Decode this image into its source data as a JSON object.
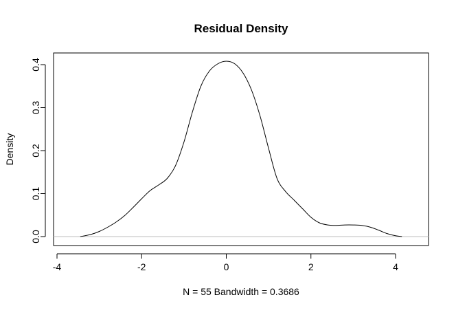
{
  "chart_data": {
    "type": "line",
    "title": "Residual Density",
    "xlabel": "N = 55   Bandwidth = 0.3686",
    "ylabel": "Density",
    "xlim": [
      -4,
      4
    ],
    "ylim": [
      0,
      0.4
    ],
    "x_ticks": [
      "-4",
      "-2",
      "0",
      "2",
      "4"
    ],
    "y_ticks": [
      "0.0",
      "0.1",
      "0.2",
      "0.3",
      "0.4"
    ],
    "grid": false,
    "legend": "none",
    "colors": {
      "line": "#000000",
      "baseline": "#bebebe",
      "frame": "#000000"
    },
    "series": [
      {
        "x": [
          -3.45,
          -3.2,
          -3.0,
          -2.8,
          -2.6,
          -2.4,
          -2.2,
          -2.0,
          -1.8,
          -1.6,
          -1.4,
          -1.2,
          -1.0,
          -0.8,
          -0.6,
          -0.4,
          -0.2,
          0.0,
          0.2,
          0.4,
          0.6,
          0.8,
          1.0,
          1.2,
          1.4,
          1.6,
          1.8,
          2.0,
          2.2,
          2.4,
          2.6,
          2.8,
          3.0,
          3.2,
          3.4,
          3.6,
          3.8,
          4.0,
          4.15
        ],
        "y": [
          0.0,
          0.005,
          0.012,
          0.022,
          0.034,
          0.049,
          0.068,
          0.088,
          0.107,
          0.12,
          0.135,
          0.165,
          0.22,
          0.29,
          0.35,
          0.385,
          0.402,
          0.408,
          0.402,
          0.38,
          0.34,
          0.28,
          0.205,
          0.135,
          0.105,
          0.085,
          0.065,
          0.045,
          0.032,
          0.027,
          0.026,
          0.027,
          0.027,
          0.026,
          0.022,
          0.015,
          0.007,
          0.002,
          0.0
        ]
      }
    ]
  }
}
